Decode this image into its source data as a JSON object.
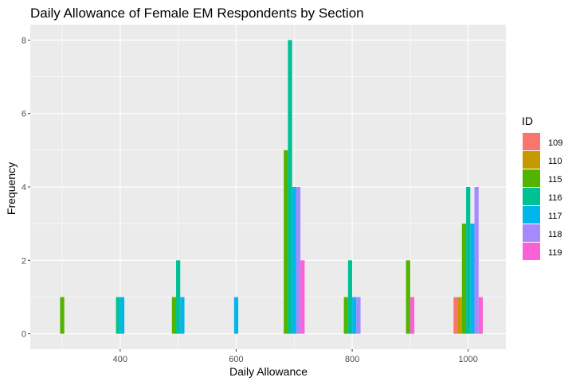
{
  "chart_data": {
    "type": "bar",
    "title": "Daily Allowance of Female EM Respondents by Section",
    "xlabel": "Daily Allowance",
    "ylabel": "Frequency",
    "xlim": [
      245,
      1065
    ],
    "ylim": [
      -0.42,
      8.42
    ],
    "x_ticks": [
      400,
      600,
      800,
      1000
    ],
    "y_ticks": [
      0,
      2,
      4,
      6,
      8
    ],
    "grid": true,
    "legend": {
      "title": "ID",
      "placement": "right"
    },
    "bar_width": 7.2,
    "series": [
      {
        "name": "109",
        "color": "#F8766D",
        "x": [
          1000
        ],
        "values": [
          1
        ]
      },
      {
        "name": "110",
        "color": "#C49A00",
        "x": [
          1000
        ],
        "values": [
          1
        ]
      },
      {
        "name": "115",
        "color": "#53B400",
        "x": [
          300,
          500,
          700,
          800,
          900,
          1000
        ],
        "values": [
          1,
          1,
          5,
          1,
          2,
          3
        ]
      },
      {
        "name": "116",
        "color": "#00C094",
        "x": [
          400,
          500,
          700,
          800,
          1000
        ],
        "values": [
          1,
          2,
          8,
          2,
          4
        ]
      },
      {
        "name": "117",
        "color": "#00B6EB",
        "x": [
          400,
          500,
          600,
          700,
          800,
          1000
        ],
        "values": [
          1,
          1,
          1,
          4,
          1,
          3
        ]
      },
      {
        "name": "118",
        "color": "#A58AFF",
        "x": [
          700,
          800,
          1000
        ],
        "values": [
          4,
          1,
          4
        ]
      },
      {
        "name": "119",
        "color": "#FB61D7",
        "x": [
          700,
          900,
          1000
        ],
        "values": [
          2,
          1,
          1
        ]
      }
    ]
  }
}
